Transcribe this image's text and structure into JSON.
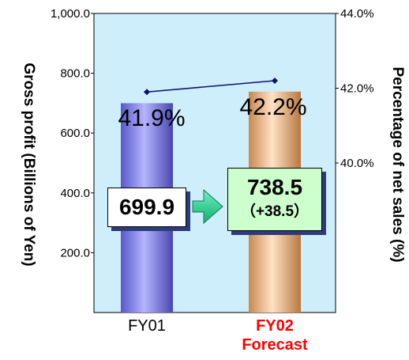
{
  "chart_data": {
    "type": "bar",
    "categories": [
      {
        "line1": "FY01",
        "line2": "",
        "color": "#000000"
      },
      {
        "line1": "FY02",
        "line2": "Forecast",
        "color": "#ff0000"
      }
    ],
    "series": [
      {
        "values": [
          699.9,
          738.5
        ],
        "colors": [
          "#8c8cf0",
          "#f6c194"
        ]
      }
    ],
    "line_series": {
      "values": [
        41.9,
        42.2
      ],
      "labels": [
        "41.9%",
        "42.2%"
      ],
      "color": "#101070"
    },
    "ylabel": "Gross profit (Billions of Yen)",
    "y2label": "Percentage of net sales (%)",
    "ylim": [
      0,
      1000
    ],
    "y2lim": [
      36,
      44
    ],
    "yticks": [
      "200.0",
      "400.0",
      "600.0",
      "800.0",
      "1,000.0"
    ],
    "y2ticks": [
      "40.0%",
      "42.0%",
      "44.0%"
    ],
    "plot_background": "#cdeefa",
    "callouts": {
      "fy01_value": "699.9",
      "fy02_value": "738.5",
      "fy02_change": "（+38.5）"
    }
  }
}
